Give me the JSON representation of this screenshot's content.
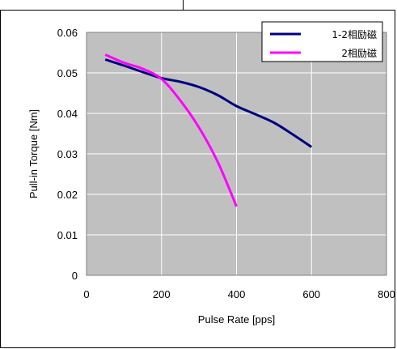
{
  "chart_data": {
    "type": "line",
    "title": "",
    "xlabel": "Pulse Rate [pps]",
    "ylabel": "Pull-in Torque [Nm]",
    "xlim": [
      0,
      800
    ],
    "ylim": [
      0,
      0.06
    ],
    "xticks": [
      0,
      200,
      400,
      600,
      800
    ],
    "yticks": [
      0,
      0.01,
      0.02,
      0.03,
      0.04,
      0.05,
      0.06
    ],
    "xtick_labels": [
      "0",
      "200",
      "400",
      "600",
      "800"
    ],
    "ytick_labels": [
      "0",
      "0.01",
      "0.02",
      "0.03",
      "0.04",
      "0.05",
      "0.06"
    ],
    "grid": true,
    "legend_position": "top-right",
    "series": [
      {
        "name": "1-2相励磁",
        "color": "#000080",
        "x": [
          50,
          100,
          150,
          200,
          250,
          300,
          350,
          400,
          450,
          500,
          550,
          600
        ],
        "y": [
          0.0533,
          0.0518,
          0.0502,
          0.0487,
          0.0478,
          0.0465,
          0.0445,
          0.0418,
          0.0398,
          0.0377,
          0.0348,
          0.0317
        ]
      },
      {
        "name": "2相励磁",
        "color": "#ff00ff",
        "x": [
          50,
          100,
          150,
          200,
          250,
          300,
          350,
          400
        ],
        "y": [
          0.0545,
          0.0525,
          0.051,
          0.0485,
          0.0432,
          0.0365,
          0.028,
          0.017
        ]
      }
    ]
  }
}
